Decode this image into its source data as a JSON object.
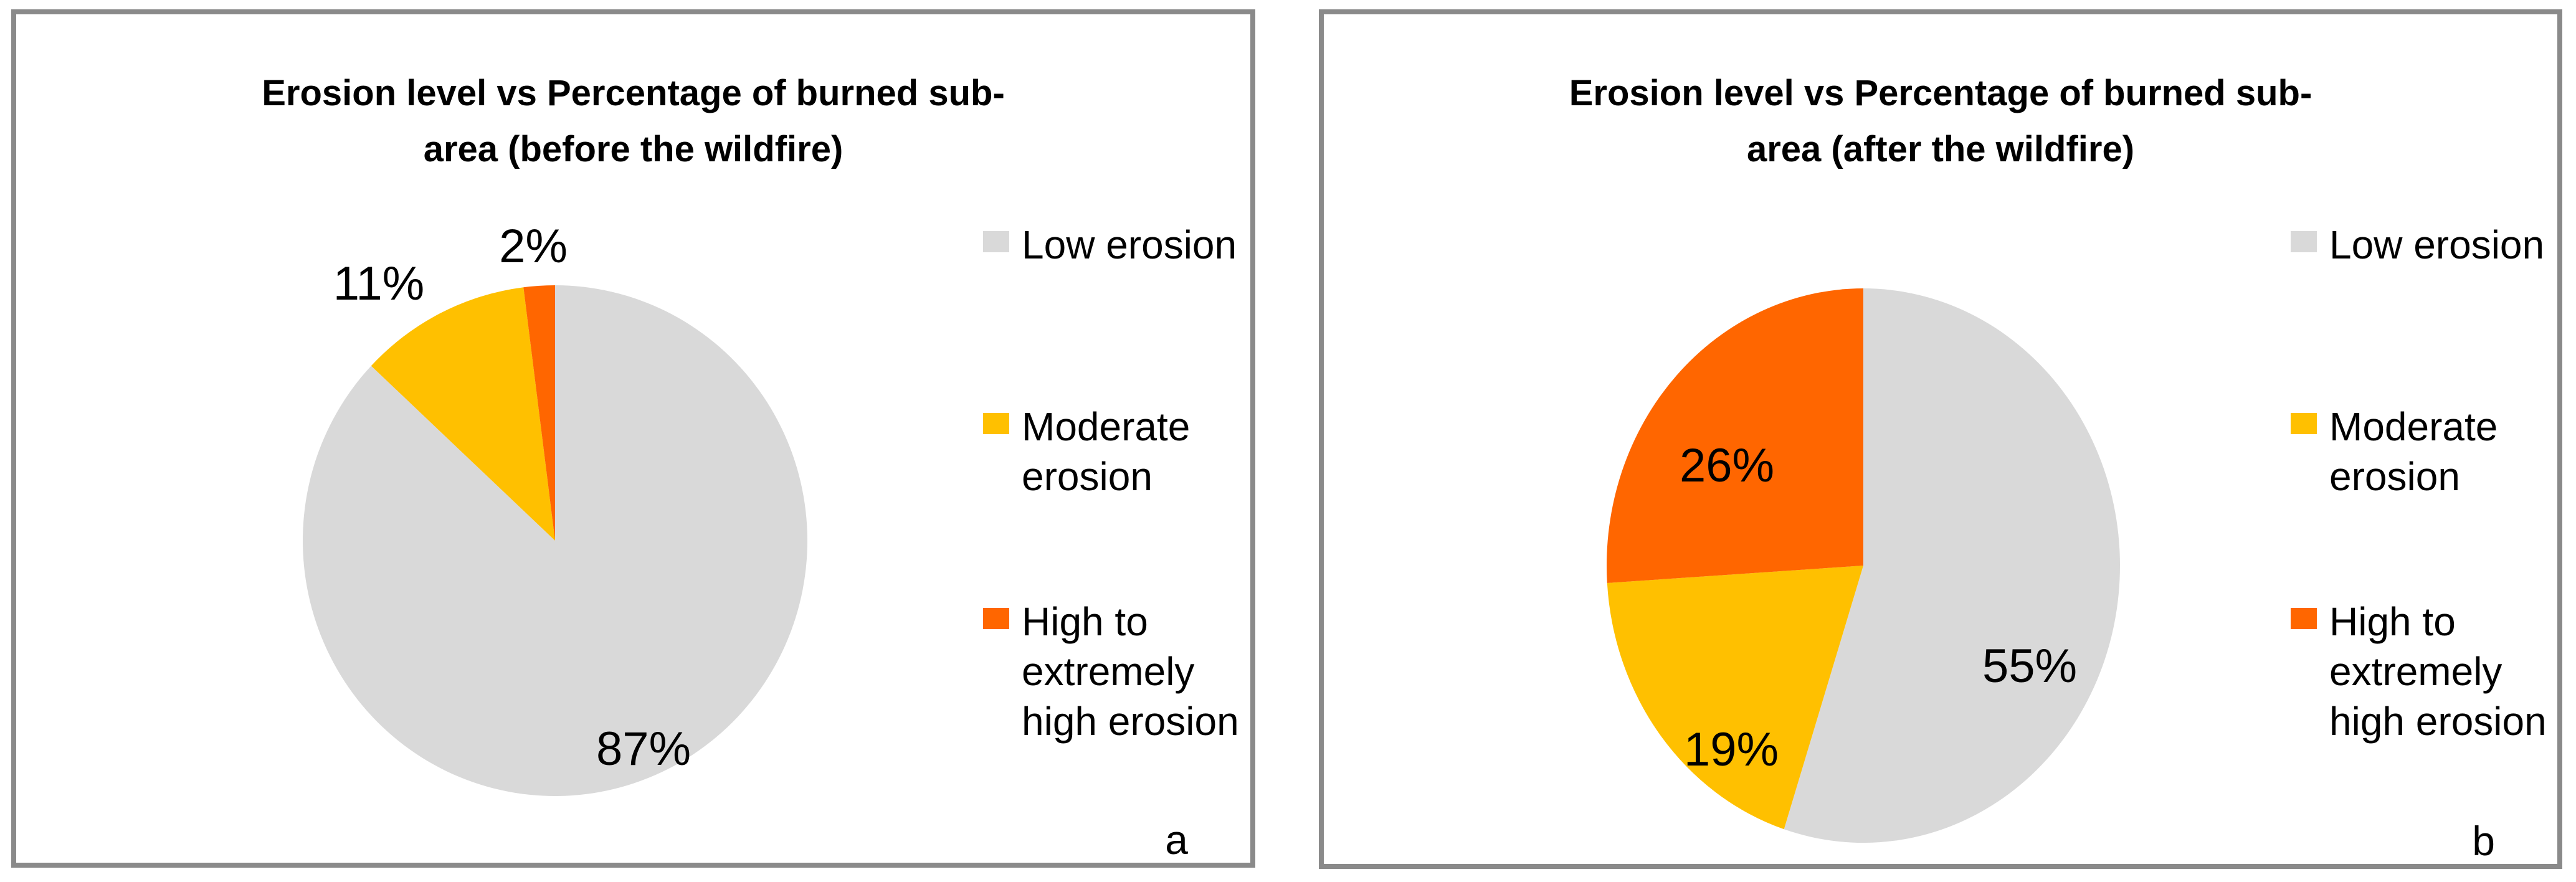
{
  "page": {
    "background_color": "#FFFFFF",
    "panel_border_color": "#8A8A8A"
  },
  "panels": [
    {
      "corner_label": "a"
    },
    {
      "corner_label": "b"
    }
  ],
  "chart_data": [
    {
      "type": "pie",
      "title": "Erosion level vs Percentage of burned sub-area (before the wildfire)",
      "title_lines": [
        "Erosion level vs Percentage of burned sub-",
        "area (before the wildfire)"
      ],
      "categories": [
        "Low erosion",
        "Moderate erosion",
        "High to extremely high erosion"
      ],
      "values": [
        87,
        11,
        2
      ],
      "unit": "%",
      "data_labels": [
        "87%",
        "11%",
        "2%"
      ],
      "colors": [
        "#D9D9D9",
        "#FFC000",
        "#FF6600"
      ],
      "legend_position": "right",
      "start_angle_deg": 0,
      "direction": "clockwise"
    },
    {
      "type": "pie",
      "title": "Erosion level vs Percentage of burned sub-area (after the wildfire)",
      "title_lines": [
        "Erosion level vs Percentage of burned sub-",
        "area (after the wildfire)"
      ],
      "categories": [
        "Low erosion",
        "Moderate erosion",
        "High to extremely high erosion"
      ],
      "values": [
        55,
        19,
        26
      ],
      "unit": "%",
      "data_labels": [
        "55%",
        "19%",
        "26%"
      ],
      "colors": [
        "#D9D9D9",
        "#FFC000",
        "#FF6600"
      ],
      "legend_position": "right",
      "start_angle_deg": 0,
      "direction": "clockwise"
    }
  ]
}
